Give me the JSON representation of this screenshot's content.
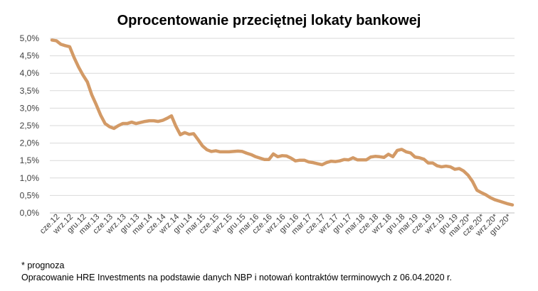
{
  "chart_data": {
    "type": "line",
    "title": "Oprocentowanie przeciętnej lokaty bankowej",
    "xlabel": "",
    "ylabel": "",
    "ylim": [
      0,
      5
    ],
    "y_ticks": [
      "0,0%",
      "0,5%",
      "1,0%",
      "1,5%",
      "2,0%",
      "2,5%",
      "3,0%",
      "3,5%",
      "4,0%",
      "4,5%",
      "5,0%"
    ],
    "y_tick_values": [
      0,
      0.5,
      1.0,
      1.5,
      2.0,
      2.5,
      3.0,
      3.5,
      4.0,
      4.5,
      5.0
    ],
    "grid": true,
    "legend": "none",
    "color": "#d39a66",
    "x_tick_labels": [
      "cze.12",
      "wrz.12",
      "gru.12",
      "mar.13",
      "cze.13",
      "wrz.13",
      "gru.13",
      "mar.14",
      "cze.14",
      "wrz.14",
      "gru.14",
      "mar.15",
      "cze.15",
      "wrz.15",
      "gru.15",
      "mar.16",
      "cze.16",
      "wrz.16",
      "gru.16",
      "mar.17",
      "cze.17",
      "wrz.17",
      "gru.17",
      "mar.18",
      "cze.18",
      "wrz.18",
      "gru.18",
      "mar.19",
      "cze.19",
      "wrz.19",
      "gru.19",
      "mar.20*",
      "cze.20*",
      "wrz.20*",
      "gru.20*"
    ],
    "values": [
      4.95,
      4.93,
      4.83,
      4.79,
      4.76,
      4.45,
      4.18,
      3.95,
      3.75,
      3.38,
      3.1,
      2.8,
      2.56,
      2.47,
      2.42,
      2.5,
      2.56,
      2.56,
      2.6,
      2.56,
      2.59,
      2.62,
      2.64,
      2.64,
      2.62,
      2.65,
      2.71,
      2.78,
      2.48,
      2.24,
      2.3,
      2.25,
      2.27,
      2.1,
      1.92,
      1.81,
      1.76,
      1.78,
      1.75,
      1.75,
      1.75,
      1.76,
      1.77,
      1.76,
      1.71,
      1.67,
      1.61,
      1.57,
      1.53,
      1.53,
      1.69,
      1.61,
      1.64,
      1.63,
      1.57,
      1.49,
      1.51,
      1.51,
      1.46,
      1.44,
      1.41,
      1.38,
      1.44,
      1.48,
      1.47,
      1.49,
      1.53,
      1.52,
      1.58,
      1.52,
      1.52,
      1.52,
      1.6,
      1.62,
      1.61,
      1.59,
      1.68,
      1.61,
      1.79,
      1.82,
      1.75,
      1.72,
      1.6,
      1.58,
      1.54,
      1.43,
      1.43,
      1.35,
      1.32,
      1.34,
      1.32,
      1.25,
      1.27,
      1.2,
      1.08,
      0.9,
      0.65,
      0.58,
      0.52,
      0.44,
      0.38,
      0.34,
      0.3,
      0.26,
      0.23
    ]
  },
  "footnote": {
    "line1": "* prognoza",
    "line2": "Opracowanie HRE Investments na podstawie danych NBP i notowań kontraktów terminowych z 06.04.2020 r."
  }
}
